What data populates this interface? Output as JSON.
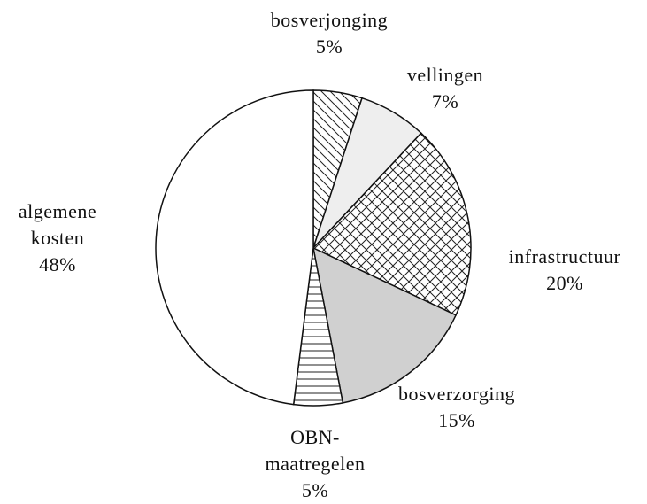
{
  "chart_data": {
    "type": "pie",
    "categories": [
      "bosverjonging",
      "vellingen",
      "infrastructuur",
      "bosverzorging",
      "OBN-maatregelen",
      "algemene kosten"
    ],
    "values": [
      5,
      7,
      20,
      15,
      5,
      48
    ],
    "value_labels": [
      "5%",
      "7%",
      "20%",
      "15%",
      "5%",
      "48%"
    ],
    "colors": [
      "#ffffff",
      "#eeeeee",
      "#ffffff",
      "#d0d0d0",
      "#ffffff",
      "#ffffff"
    ],
    "hatches": [
      "diagonal",
      "none",
      "crosshatch",
      "none",
      "horizontal",
      "none"
    ],
    "start_angle": 90,
    "direction": "clockwise"
  }
}
